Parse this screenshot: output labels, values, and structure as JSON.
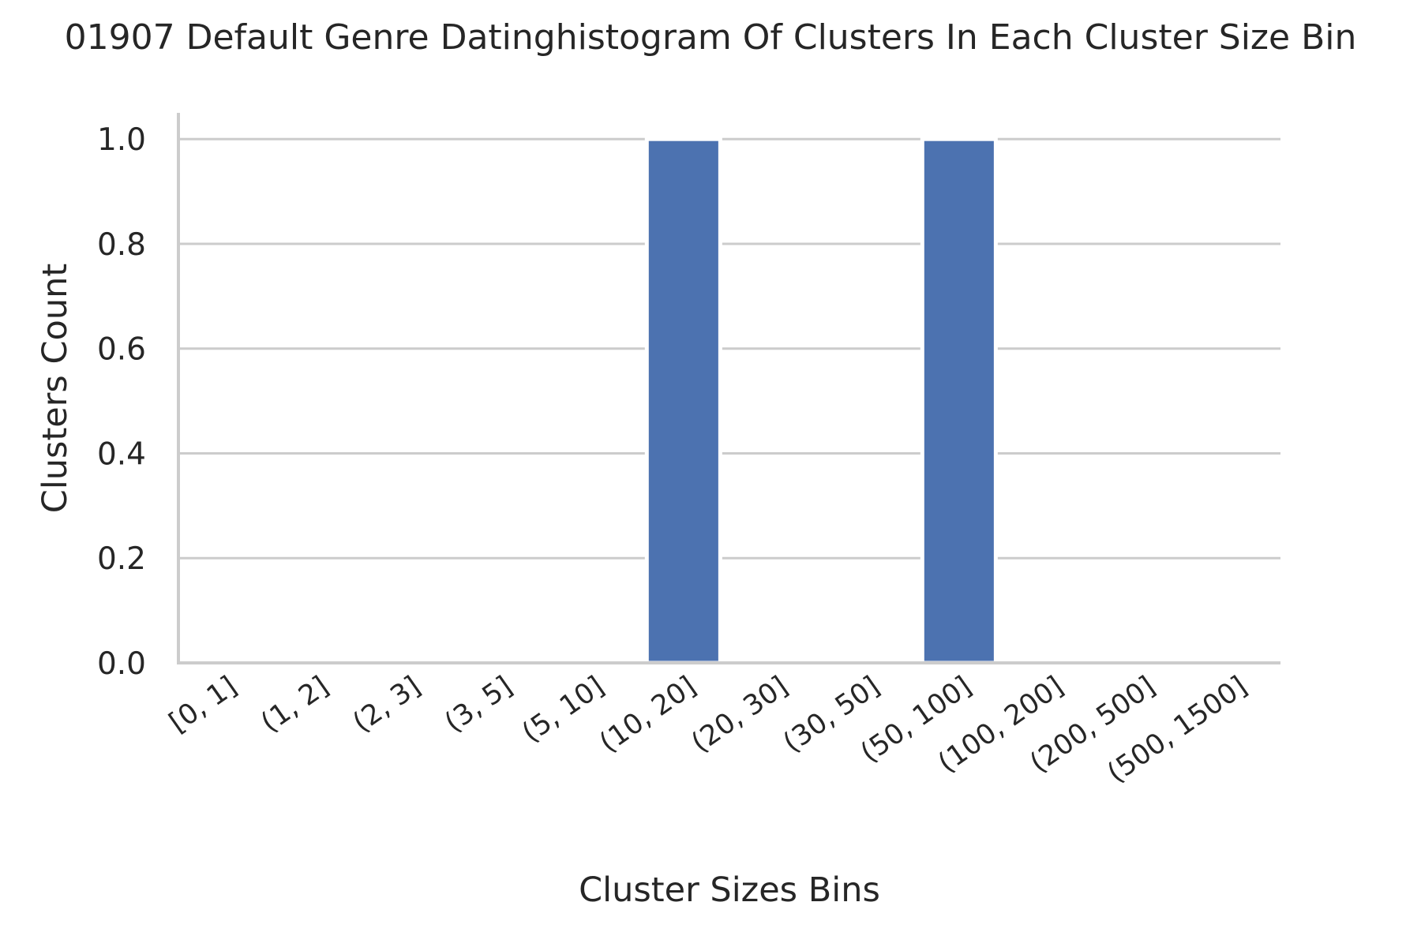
{
  "chart_data": {
    "type": "bar",
    "title": "01907 Default Genre Datinghistogram Of Clusters In Each Cluster Size Bin",
    "xlabel": "Cluster Sizes Bins",
    "ylabel": "Clusters Count",
    "categories": [
      "[0, 1]",
      "(1, 2]",
      "(2, 3]",
      "(3, 5]",
      "(5, 10]",
      "(10, 20]",
      "(20, 30]",
      "(30, 50]",
      "(50, 100]",
      "(100, 200]",
      "(200, 500]",
      "(500, 1500]"
    ],
    "values": [
      0,
      0,
      0,
      0,
      0,
      1,
      0,
      0,
      1,
      0,
      0,
      0
    ],
    "ylim": [
      0,
      1.05
    ],
    "yticks": [
      0.0,
      0.2,
      0.4,
      0.6,
      0.8,
      1.0
    ],
    "ytick_labels": [
      "0.0",
      "0.2",
      "0.4",
      "0.6",
      "0.8",
      "1.0"
    ],
    "grid": "horizontal",
    "bar_color": "#4c72b0",
    "grid_color": "#cccccc"
  }
}
